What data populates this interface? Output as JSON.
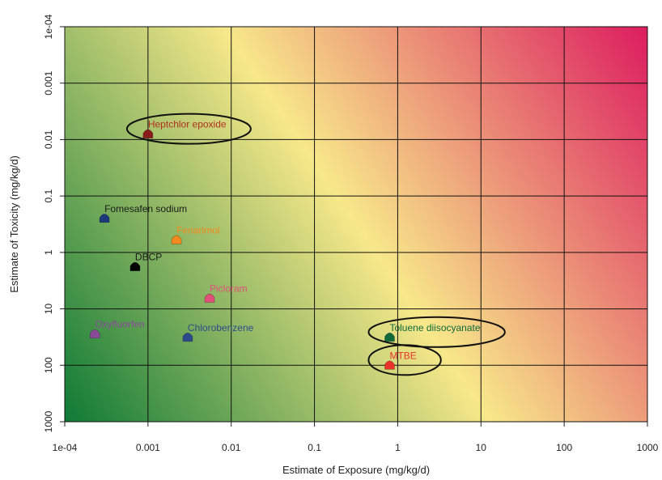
{
  "chart_data": {
    "type": "scatter",
    "xlabel": "Estimate of Exposure (mg/kg/d)",
    "ylabel": "Estimate of Toxicity (mg/kg/d)",
    "x_scale": "log",
    "y_scale": "log",
    "y_inverted": true,
    "xlim": [
      0.0001,
      1000
    ],
    "ylim": [
      0.0001,
      1000
    ],
    "x_ticks": [
      {
        "v": 0.0001,
        "label": "1e-04"
      },
      {
        "v": 0.001,
        "label": "0.001"
      },
      {
        "v": 0.01,
        "label": "0.01"
      },
      {
        "v": 0.1,
        "label": "0.1"
      },
      {
        "v": 1,
        "label": "1"
      },
      {
        "v": 10,
        "label": "10"
      },
      {
        "v": 100,
        "label": "100"
      },
      {
        "v": 1000,
        "label": "1000"
      }
    ],
    "y_ticks": [
      {
        "v": 0.0001,
        "label": "1e-04"
      },
      {
        "v": 0.001,
        "label": "0.001"
      },
      {
        "v": 0.01,
        "label": "0.01"
      },
      {
        "v": 0.1,
        "label": "0.1"
      },
      {
        "v": 1,
        "label": "1"
      },
      {
        "v": 10,
        "label": "10"
      },
      {
        "v": 100,
        "label": "100"
      },
      {
        "v": 1000,
        "label": "1000"
      }
    ],
    "grid": true,
    "background": "diagonal gradient from green (low exposure, low toxicity) through yellow to magenta (high exposure, high toxicity)",
    "colors": {
      "green": "#0e7a35",
      "yellow": "#f7e88a",
      "magenta": "#dc1d5f"
    },
    "points": [
      {
        "name": "Heptchlor epoxide",
        "x": 0.001,
        "y": 0.008,
        "color": "#8b1a1a",
        "label_color": "#b03020",
        "circled": true
      },
      {
        "name": "Fomesafen sodium",
        "x": 0.0003,
        "y": 0.25,
        "color": "#1c3a7a",
        "label_color": "#1a1a1a",
        "circled": false
      },
      {
        "name": "Fenarimol",
        "x": 0.0022,
        "y": 0.6,
        "color": "#f28a1e",
        "label_color": "#f28a1e",
        "circled": false
      },
      {
        "name": "DBCP",
        "x": 0.0007,
        "y": 1.8,
        "color": "#000000",
        "label_color": "#1a1a1a",
        "circled": false
      },
      {
        "name": "Picloram",
        "x": 0.0055,
        "y": 6.5,
        "color": "#e0507a",
        "label_color": "#e0507a",
        "circled": false
      },
      {
        "name": "Chlorobenzene",
        "x": 0.003,
        "y": 32,
        "color": "#2e4a8a",
        "label_color": "#2e4a8a",
        "circled": false
      },
      {
        "name": "Oxyfluorfen",
        "x": 0.00023,
        "y": 28,
        "color": "#8a4a9a",
        "label_color": "#8a4a9a",
        "circled": false
      },
      {
        "name": "Toluene diisocyanate",
        "x": 0.8,
        "y": 32,
        "color": "#0f6a3a",
        "label_color": "#0f6a3a",
        "circled": true
      },
      {
        "name": "MTBE",
        "x": 0.8,
        "y": 100,
        "color": "#e8322a",
        "label_color": "#e8322a",
        "circled": true
      }
    ]
  }
}
